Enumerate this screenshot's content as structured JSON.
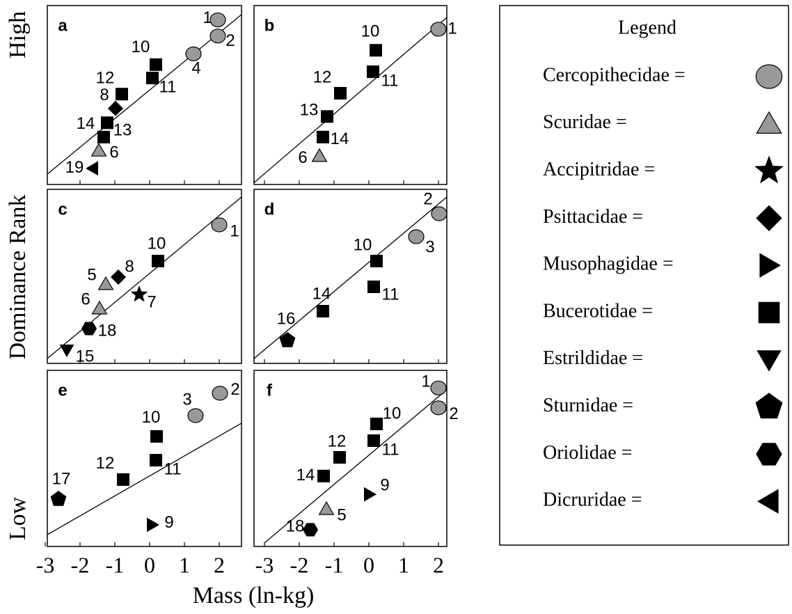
{
  "figure": {
    "xlabel": "Mass (ln-kg)",
    "ylabel": "Dominance Rank",
    "high": "High",
    "low": "Low"
  },
  "legend": {
    "title": "Legend",
    "entries": [
      {
        "label": "Cercopithecidae =",
        "marker": "circle"
      },
      {
        "label": "Scuridae =",
        "marker": "triangle"
      },
      {
        "label": "Accipitridae =",
        "marker": "star"
      },
      {
        "label": "Psittacidae =",
        "marker": "diamond"
      },
      {
        "label": "Musophagidae =",
        "marker": "right"
      },
      {
        "label": "Bucerotidae =",
        "marker": "square"
      },
      {
        "label": "Estrildidae =",
        "marker": "down"
      },
      {
        "label": "Sturnidae =",
        "marker": "pentagon"
      },
      {
        "label": "Oriolidae =",
        "marker": "hexagon"
      },
      {
        "label": "Dicruridae =",
        "marker": "left"
      }
    ]
  },
  "chart_data": [
    {
      "type": "scatter",
      "title": "a",
      "xlim": [
        -2.94,
        2.64
      ],
      "xticks": [
        -2,
        -1,
        0,
        1,
        2
      ],
      "ylim": [
        0,
        10
      ],
      "x": [
        1.96,
        1.96,
        1.26,
        0.18,
        0.08,
        -0.8,
        -0.98,
        -1.22,
        -1.32,
        -1.46,
        -1.64
      ],
      "values": [
        9.2,
        8.3,
        7.3,
        6.7,
        5.95,
        5.05,
        4.25,
        3.45,
        2.65,
        1.9,
        0.9
      ],
      "labels": [
        "1",
        "2",
        "4",
        "10",
        "11",
        "12",
        "8",
        "13",
        "14",
        "6",
        "19"
      ],
      "markers": [
        "circle",
        "circle",
        "circle",
        "square",
        "square",
        "square",
        "diamond",
        "square",
        "square",
        "triangle",
        "left"
      ],
      "fit_x": [
        -2.94,
        2.64
      ],
      "fit_y": [
        0.58,
        9.5
      ]
    },
    {
      "type": "scatter",
      "title": "b",
      "xlim": [
        -3.3,
        2.24
      ],
      "xticks": [
        -3,
        -2,
        -1,
        0,
        1,
        2
      ],
      "ylim": [
        0,
        10
      ],
      "x": [
        2.0,
        0.2,
        0.12,
        -0.82,
        -1.2,
        -1.32,
        -1.42
      ],
      "values": [
        8.68,
        7.5,
        6.3,
        5.1,
        3.8,
        2.65,
        1.6
      ],
      "labels": [
        "1",
        "10",
        "11",
        "12",
        "13",
        "14",
        "6"
      ],
      "markers": [
        "circle",
        "square",
        "square",
        "square",
        "square",
        "square",
        "triangle"
      ],
      "fit_x": [
        -3.3,
        2.24
      ],
      "fit_y": [
        0.1,
        9.34
      ]
    },
    {
      "type": "scatter",
      "title": "c",
      "xlim": [
        -2.94,
        2.64
      ],
      "xticks": [
        -2,
        -1,
        0,
        1,
        2
      ],
      "ylim": [
        0,
        10
      ],
      "x": [
        2.0,
        0.24,
        -0.9,
        -1.26,
        -0.3,
        -1.44,
        -1.74,
        -2.38
      ],
      "values": [
        7.96,
        5.88,
        4.96,
        4.56,
        3.96,
        3.16,
        2.0,
        0.76
      ],
      "labels": [
        "1",
        "10",
        "8",
        "5",
        "7",
        "6",
        "18",
        "15"
      ],
      "markers": [
        "circle",
        "square",
        "diamond",
        "triangle",
        "star",
        "triangle",
        "hexagon",
        "down"
      ],
      "fit_x": [
        -2.94,
        2.64
      ],
      "fit_y": [
        0.28,
        9.56
      ]
    },
    {
      "type": "scatter",
      "title": "d",
      "xlim": [
        -3.3,
        2.24
      ],
      "xticks": [
        -3,
        -2,
        -1,
        0,
        1,
        2
      ],
      "ylim": [
        0,
        10
      ],
      "x": [
        2.02,
        1.36,
        0.22,
        0.14,
        -1.32,
        -2.34
      ],
      "values": [
        8.6,
        7.28,
        5.88,
        4.4,
        3.0,
        1.32
      ],
      "labels": [
        "2",
        "3",
        "10",
        "11",
        "14",
        "16"
      ],
      "markers": [
        "circle",
        "circle",
        "square",
        "square",
        "square",
        "pentagon"
      ],
      "fit_x": [
        -3.3,
        2.24
      ],
      "fit_y": [
        0.28,
        9.56
      ]
    },
    {
      "type": "scatter",
      "title": "e",
      "xlim": [
        -2.94,
        2.64
      ],
      "xticks": [
        -3,
        -2,
        -1,
        0,
        1,
        2
      ],
      "ylim": [
        0,
        10
      ],
      "x": [
        2.02,
        1.32,
        0.2,
        0.18,
        -0.76,
        -2.62,
        0.08
      ],
      "values": [
        8.7,
        7.43,
        6.25,
        4.9,
        3.8,
        2.69,
        1.23
      ],
      "labels": [
        "2",
        "3",
        "10",
        "11",
        "12",
        "17",
        "9"
      ],
      "markers": [
        "circle",
        "circle",
        "square",
        "square",
        "square",
        "pentagon",
        "right"
      ],
      "fit_x": [
        -2.94,
        2.64
      ],
      "fit_y": [
        0.67,
        7.0
      ]
    },
    {
      "type": "scatter",
      "title": "f",
      "xlim": [
        -3.3,
        2.24
      ],
      "xticks": [
        -3,
        -2,
        -1,
        0,
        1,
        2
      ],
      "ylim": [
        0,
        10
      ],
      "x": [
        2.0,
        2.0,
        0.22,
        0.14,
        -0.84,
        -1.3,
        0.02,
        -1.22,
        -1.68
      ],
      "values": [
        9.0,
        7.87,
        6.96,
        6.01,
        5.06,
        4.0,
        2.96,
        2.13,
        0.95
      ],
      "labels": [
        "1",
        "2",
        "10",
        "11",
        "12",
        "14",
        "9",
        "5",
        "18"
      ],
      "markers": [
        "circle",
        "circle",
        "square",
        "square",
        "square",
        "square",
        "right",
        "triangle",
        "hexagon"
      ],
      "fit_x": [
        -3.0,
        2.24
      ],
      "fit_y": [
        0.2,
        8.9
      ]
    }
  ]
}
